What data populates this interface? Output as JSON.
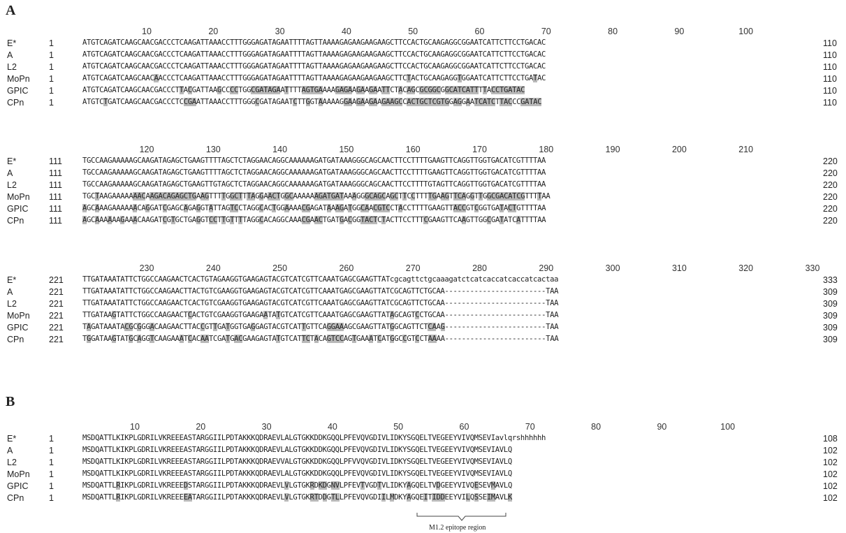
{
  "panelA": {
    "label": "A",
    "blocks": [
      {
        "ruler": [
          "10",
          "20",
          "30",
          "40",
          "50",
          "60",
          "70",
          "80",
          "90",
          "100"
        ],
        "rows": [
          {
            "name": "E*",
            "start": "1",
            "seq": "ATGTCAGATCAAGCAACGACCCTCAAGATTAAACCTTTGGGAGATAGAATTTTAGTTAAAAGAGAAGAAGAAGCTTCCACTGCAAGAGGCGGAATCATTCTTCCTGACAC",
            "end": "110"
          },
          {
            "name": "A",
            "start": "1",
            "seq": "ATGTCAGATCAAGCAACGACCCTCAAGATTAAACCTTTGGGAGATAGAATTTTAGTTAAAAGAGAAGAAGAAGCTTCCACTGCAAGAGGCGGAATCATTCTTCCTGACAC",
            "end": "110"
          },
          {
            "name": "L2",
            "start": "1",
            "seq": "ATGTCAGATCAAGCAACGACCCTCAAGATTAAACCTTTGGGAGATAGAATTTTAGTTAAAAGAGAAGAAGAAGCTTCCACTGCAAGAGGCGGAATCATTCTTCCTGACAC",
            "end": "110"
          },
          {
            "name": "MoPn",
            "start": "1",
            "seq": "ATGTCAGATCAAGCAACAACCCTCAAGATTAAACCTTTGGGAGATAGAATTTTAGTTAAAAGAGAAGAAGAAGCTTCTACTGCAAGAGGTGGAATCATTCTTCCTGATAC",
            "end": "110"
          },
          {
            "name": "GPIC",
            "start": "1",
            "seq": "ATGTCAGATCAAGCAACGACCCTTACGATTAAGCCCCTGGCGATAGAATTTTAGTGAAAAGAGAAGAAGAATTCTACAGCGCGGCGGCATCATTTTACCTGATAC",
            "end": "110"
          },
          {
            "name": "CPn",
            "start": "1",
            "seq": "ATGTCTGATCAAGCAACGACCCTCCGAATTAAACCTTTGGGCGATAGAATCTTGGTAAAAAGGAAGAAGAAGAAGCCACTGCTCGTGGAGGAATCATCTTACCCGATAC",
            "end": "110"
          }
        ]
      },
      {
        "ruler": [
          "120",
          "130",
          "140",
          "150",
          "160",
          "170",
          "180",
          "190",
          "200",
          "210"
        ],
        "rows": [
          {
            "name": "E*",
            "start": "111",
            "seq": "TGCCAAGAAAAAGCAAGATAGAGCTGAAGTTTTAGCTCTAGGAACAGGCAAAAAAGATGATAAAGGGCAGCAACTTCCTTTTGAAGTTCAGGTTGGTGACATCGTTTTAA",
            "end": "220"
          },
          {
            "name": "A",
            "start": "111",
            "seq": "TGCCAAGAAAAAGCAAGATAGAGCTGAAGTTTTAGCTCTAGGAACAGGCAAAAAAGATGATAAAGGGCAGCAACTTCCTTTTGAAGTTCAGGTTGGTGACATCGTTTTAA",
            "end": "220"
          },
          {
            "name": "L2",
            "start": "111",
            "seq": "TGCCAAGAAAAAGCAAGATAGAGCTGAAGTTGTAGCTCTAGGAACAGGCAAAAAAGATGATAAAGGGCAGCAACTTCCTTTTGTAGTTCAGGTTGGTGACATCGTTTTAA",
            "end": "220"
          },
          {
            "name": "MoPn",
            "start": "111",
            "seq": "TGCTAAGAAAAAAACAAGACAGAGCTGAAGTTTTGGCTTTAGGAACTGGCAAAAAAGATGATAAAGGGCAGCAGCTTCCTTTTGAAGTTCAGGTTGGCGACATCGTTTTAA",
            "end": "220"
          },
          {
            "name": "GPIC",
            "start": "111",
            "seq": "AGCAAAGAAAAAACAGGATCGAGCAGAGGTATTAGTCCTAGGCACTGGAAAACGAGATAAAGATGGCAACGTCCTACCTTTTGAAGTTACCGTCGGTGATACTGTTTTAA",
            "end": "220"
          },
          {
            "name": "CPn",
            "start": "111",
            "seq": "AGCAAAAAAGAAACAAGATCGTGCTGAGGTCCTTGTTTTAGGCACAGGCAAACGAACTGATGACGGTACTCTACTTCCTTTCGAAGTTCAAGTTGGCGATATCATTTTAA",
            "end": "220"
          }
        ]
      },
      {
        "ruler": [
          "230",
          "240",
          "250",
          "260",
          "270",
          "280",
          "290",
          "300",
          "310",
          "320",
          "330"
        ],
        "rows": [
          {
            "name": "E*",
            "start": "221",
            "seq": "TTGATAAATATTCTGGCCAAGAACTCACTGTAGAAGGTGAAGAGTACGTCATCGTTCAAATGAGCGAAGTTATcgcagttctgcaaagatctcatcaccatcaccatcactaa",
            "end": "333"
          },
          {
            "name": "A",
            "start": "221",
            "seq": "TTGATAAATATTCTGGCCAAGAACTTACTGTCGAAGGTGAAGAGTACGTCATCGTTCAAATGAGCGAAGTTATCGCAGTTCTGCAA------------------------TAA",
            "end": "309"
          },
          {
            "name": "L2",
            "start": "221",
            "seq": "TTGATAAATATTCTGGCCAAGAACTCACTGTCGAAGGTGAAGAGTACGTCATCGTTCAAATGAGCGAAGTTATCGCAGTTCTGCAA------------------------TAA",
            "end": "309"
          },
          {
            "name": "MoPn",
            "start": "221",
            "seq": "TTGATAAGTATTCTGGCCAAGAACTCACTGTCGAAGGTGAAGAATATGTCATCGTTCAAATGAGCGAAGTTATAGCAGTCCTGCAA------------------------TAA",
            "end": "309"
          },
          {
            "name": "GPIC",
            "start": "221",
            "seq": "TAGATAAATACGCGGGACAAGAACTTACCGTTGATGGTGAGGAGTACGTCATTGTTCAGGAAAGCGAAGTTATGGCAGTTCTCAAG------------------------TAA",
            "end": "309"
          },
          {
            "name": "CPn",
            "start": "221",
            "seq": "TGGATAAGTATGCAGGTCAAGAAATCACAATCGATGACGAAGAGTATGTCATTCTACAGTCCAGTGAAATCATGGCCGTCCTAAAA------------------------TAA",
            "end": "309"
          }
        ]
      }
    ]
  },
  "panelB": {
    "label": "B",
    "ruler": [
      "10",
      "20",
      "30",
      "40",
      "50",
      "60",
      "70",
      "80",
      "90",
      "100"
    ],
    "rows": [
      {
        "name": "E*",
        "start": "1",
        "seq": "MSDQATTLKIKPLGDRILVKREEEASTARGGIILPDTAKKKQDRAEVLALGTGKKDDKGQQLPFEVQVGDIVLIDKYSGQELTVEGEEYVIVQMSEVIavlqrshhhhhh",
        "end": "108"
      },
      {
        "name": "A",
        "start": "1",
        "seq": "MSDQATTLKIKPLGDRILVKREEEASTARGGIILPDTAKKKQDRAEVLALGTGKKDDKGQQLPFEVQVGDIVLIDKYSGQELTVEGEEYVIVQMSEVIAVLQ",
        "end": "102"
      },
      {
        "name": "L2",
        "start": "1",
        "seq": "MSDQATTLKIKPLGDRILVKREEEASTARGGIILPDTAKKKQDRAEVVALGTGKKDDKGQQLPFVVQVGDIVLIDKYSGQELTVEGEEYVIVQMSEVIAVLQ",
        "end": "102"
      },
      {
        "name": "MoPn",
        "start": "1",
        "seq": "MSDQATTLKIKPLGDRILVKREEEASTARGGIILPDTAKKKQDRAEVLALGTGKKDDKGQQLPFEVQVGDIVLIDKYSGQELTVEGEEYVIVQMSEVIAVLQ",
        "end": "102"
      },
      {
        "name": "GPIC",
        "start": "1",
        "seq": "MSDQATTLRIKPLGDRILVKREEEDSTARGGIILPDTAKKKQDRAEVLVLGTGKRDKDGNVLPFEVTVGDTVLIDKYAGQELTVDGEEYVIVQESEVMAVLQ",
        "end": "102"
      },
      {
        "name": "CPn",
        "start": "1",
        "seq": "MSDQATTLRIKPLGDRILVKREEEEATARGGIILPDTAKKKQDRAEVLVLGTGKRTDDGTLLPFEVQVGDIILMDKYAGQEITIDDEEYVILQSSEIMAVLK",
        "end": "102"
      }
    ],
    "epitope_label": "M1.2 epitope region"
  },
  "colors": {
    "highlight": "#b9b9b9",
    "text": "#222222"
  }
}
